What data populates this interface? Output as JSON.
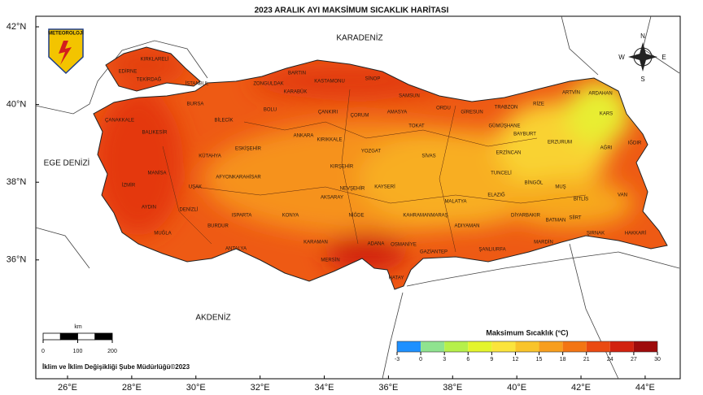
{
  "header": {
    "title": "2023 ARALIK AYI MAKSİMUM SICAKLIK HARİTASI",
    "logo": "METEOROLOJİ"
  },
  "seas": [
    "KARADENİZ",
    "EGE DENİZİ",
    "AKDENİZ"
  ],
  "compass": [
    "N",
    "E",
    "S",
    "W"
  ],
  "lon_ticks": [
    {
      "value": 26,
      "label": "26°E"
    },
    {
      "value": 28,
      "label": "28°E"
    },
    {
      "value": 30,
      "label": "30°E"
    },
    {
      "value": 32,
      "label": "32°E"
    },
    {
      "value": 34,
      "label": "34°E"
    },
    {
      "value": 36,
      "label": "36°E"
    },
    {
      "value": 38,
      "label": "38°E"
    },
    {
      "value": 40,
      "label": "40°E"
    },
    {
      "value": 42,
      "label": "42°E"
    },
    {
      "value": 44,
      "label": "44°E"
    }
  ],
  "lat_ticks": [
    {
      "value": 42,
      "label": "42°N"
    },
    {
      "value": 40,
      "label": "40°N"
    },
    {
      "value": 38,
      "label": "38°N"
    },
    {
      "value": 36,
      "label": "36°N"
    }
  ],
  "provinces": [
    "EDİRNE",
    "KIRKLARELİ",
    "TEKİRDAĞ",
    "İSTANBUL",
    "ZONGULDAK",
    "BARTIN",
    "KASTAMONU",
    "SİNOP",
    "SAMSUN",
    "ORDU",
    "GİRESUN",
    "TRABZON",
    "RİZE",
    "ARTVİN",
    "ARDAHAN",
    "KARS",
    "IĞDIR",
    "AĞRI",
    "ERZURUM",
    "ÇANAKKALE",
    "BALIKESİR",
    "BURSA",
    "BİLECİK",
    "BOLU",
    "KARABÜK",
    "ÇANKIRI",
    "ÇORUM",
    "AMASYA",
    "TOKAT",
    "GÜMÜŞHANE",
    "BAYBURT",
    "ERZİNCAN",
    "KÜTAHYA",
    "ESKİŞEHİR",
    "ANKARA",
    "KIRIKKALE",
    "YOZGAT",
    "SİVAS",
    "MANİSA",
    "İZMİR",
    "AFYONKARAHİSAR",
    "KIRŞEHİR",
    "KAYSERİ",
    "TUNCELİ",
    "BİNGÖL",
    "MUŞ",
    "UŞAK",
    "AKSARAY",
    "NEVŞEHİR",
    "MALATYA",
    "ELAZIĞ",
    "BİTLİS",
    "VAN",
    "AYDIN",
    "DENİZLİ",
    "ISPARTA",
    "KONYA",
    "NİĞDE",
    "KAHRAMANMARAŞ",
    "ADIYAMAN",
    "DİYARBAKIR",
    "BATMAN",
    "SİİRT",
    "MUĞLA",
    "BURDUR",
    "KARAMAN",
    "ADANA",
    "OSMANİYE",
    "GAZİANTEP",
    "ŞANLIURFA",
    "MARDİN",
    "ŞIRNAK",
    "HAKKARİ",
    "ANTALYA",
    "MERSİN",
    "HATAY"
  ],
  "scale_bar": {
    "unit": "km",
    "ticks": [
      0,
      100,
      200
    ]
  },
  "colorbar": {
    "title": "Maksimum Sıcaklık (°C)",
    "ticks": [
      -3,
      0,
      3,
      6,
      9,
      12,
      15,
      18,
      21,
      24,
      27,
      30
    ],
    "colors": [
      "#1e90ff",
      "#8fe38f",
      "#b6f04a",
      "#e4f52c",
      "#fbe43c",
      "#f9c42a",
      "#f79e1e",
      "#f37514",
      "#ea4a12",
      "#d2220f",
      "#9e0b0b"
    ]
  },
  "footer": "İklim ve İklim Değişikliği Şube Müdürlüğü©2023"
}
